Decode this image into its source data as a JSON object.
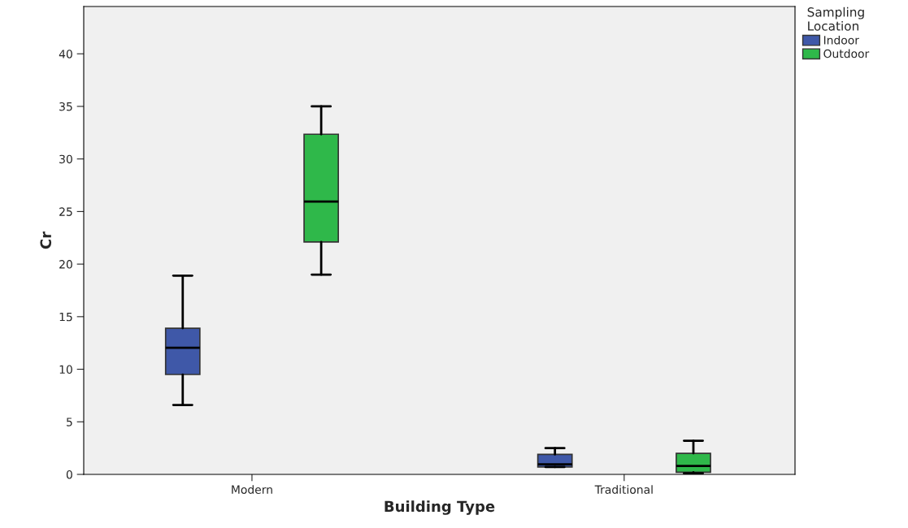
{
  "chart_data": {
    "type": "box",
    "xlabel": "Building Type",
    "ylabel": "Cr",
    "legend_title": "Sampling\nLocation",
    "categories": [
      "Modern",
      "Traditional"
    ],
    "series": [
      {
        "name": "Indoor",
        "color": "#3f58a8",
        "boxes": [
          {
            "low": 6.6,
            "q1": 9.5,
            "median": 12.05,
            "q3": 13.9,
            "high": 18.9
          },
          {
            "low": 0.7,
            "q1": 0.7,
            "median": 0.95,
            "q3": 1.9,
            "high": 2.5
          }
        ]
      },
      {
        "name": "Outdoor",
        "color": "#2fb84a",
        "boxes": [
          {
            "low": 19.0,
            "q1": 22.1,
            "median": 25.95,
            "q3": 32.35,
            "high": 35.0
          },
          {
            "low": 0.1,
            "q1": 0.2,
            "median": 0.8,
            "q3": 2.0,
            "high": 3.2
          }
        ]
      }
    ],
    "ylim": [
      0,
      44.5
    ],
    "yticks": [
      0,
      5,
      10,
      15,
      20,
      25,
      30,
      35,
      40
    ],
    "grid": false,
    "legend": "top right"
  }
}
